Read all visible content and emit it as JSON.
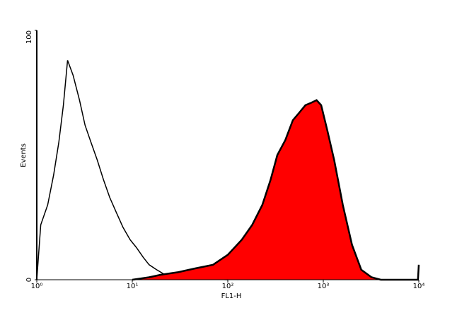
{
  "chart_data": {
    "type": "area",
    "xlabel": "FL1-H",
    "ylabel": "Events",
    "xscale": "log",
    "xlim": [
      1,
      10000
    ],
    "xticks": [
      {
        "value": 1,
        "label": "10⁰"
      },
      {
        "value": 10,
        "label": "10¹"
      },
      {
        "value": 100,
        "label": "10²"
      },
      {
        "value": 1000,
        "label": "10³"
      },
      {
        "value": 10000,
        "label": "10⁴"
      }
    ],
    "ylim": [
      0,
      100
    ],
    "yticks": [
      0,
      100
    ],
    "series": [
      {
        "color": "#000000",
        "x": [
          1,
          1.1,
          1.3,
          1.5,
          1.7,
          1.9,
          2.1,
          2.4,
          2.8,
          3.2,
          3.7,
          4.3,
          5,
          5.8,
          6.8,
          8,
          9.5,
          11,
          13,
          15,
          18,
          22,
          30,
          50,
          100
        ],
        "values": [
          0,
          22,
          30,
          42,
          55,
          70,
          88,
          82,
          72,
          62,
          55,
          48,
          40,
          33,
          27,
          21,
          16,
          13,
          9,
          6,
          4,
          2,
          1,
          0.5,
          0
        ]
      },
      {
        "color": "#000000",
        "fill": "#ff0000",
        "x": [
          10,
          15,
          20,
          30,
          45,
          70,
          100,
          140,
          180,
          230,
          280,
          330,
          400,
          480,
          560,
          650,
          750,
          850,
          950,
          1100,
          1300,
          1600,
          2000,
          2500,
          3200,
          4000,
          9800,
          10000
        ],
        "values": [
          0,
          1,
          2,
          3,
          4.5,
          6,
          10,
          16,
          22,
          30,
          40,
          50,
          56,
          64,
          67,
          70,
          71,
          72,
          70,
          60,
          48,
          30,
          14,
          4,
          1,
          0,
          0,
          6
        ]
      }
    ]
  }
}
